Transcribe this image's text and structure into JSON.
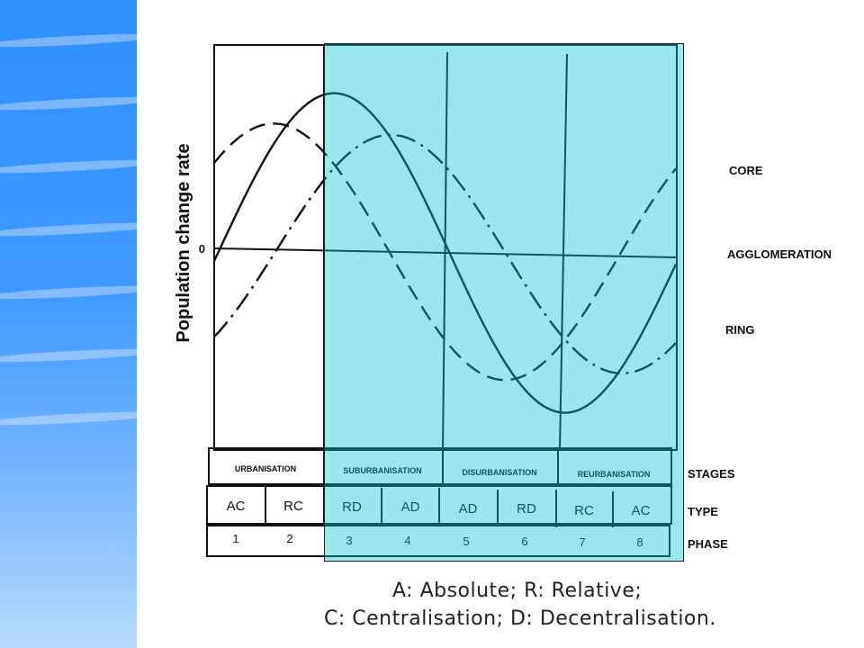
{
  "diagram": {
    "y_axis_label": "Population change rate",
    "zero_label": "0",
    "curves": [
      {
        "name": "CORE",
        "style": "dashed"
      },
      {
        "name": "AGGLOMERATION",
        "style": "solid"
      },
      {
        "name": "RING",
        "style": "dash-dot"
      }
    ],
    "stages": [
      "URBANISATION",
      "SUBURBANISATION",
      "DISURBANISATION",
      "REURBANISATION"
    ],
    "types": [
      "AC",
      "RC",
      "RD",
      "AD",
      "AD",
      "RD",
      "RC",
      "AC"
    ],
    "phases": [
      "1",
      "2",
      "3",
      "4",
      "5",
      "6",
      "7",
      "8"
    ],
    "row_labels": {
      "stages": "STAGES",
      "type": "TYPE",
      "phase": "PHASE"
    }
  },
  "legend": {
    "line1": "A: Absolute; R: Relative;",
    "line2": "C: Centralisation; D: Decentralisation."
  },
  "colors": {
    "highlight": "#00c4cc",
    "side_band": "#3f99ff"
  }
}
